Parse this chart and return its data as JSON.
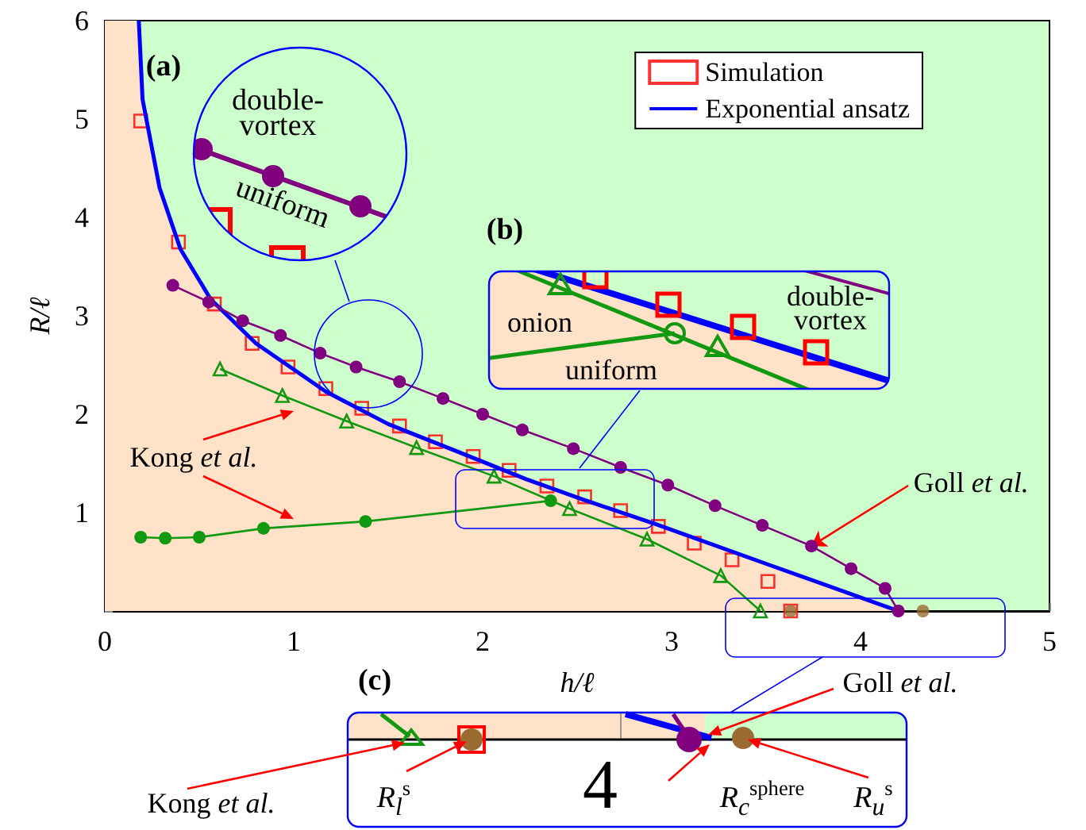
{
  "chart_data": {
    "type": "line",
    "xlabel": "h/ℓ",
    "ylabel": "R/ℓ",
    "xlim": [
      0,
      5
    ],
    "xticks": [
      0,
      1,
      2,
      3,
      4,
      5
    ],
    "ylim": [
      0,
      6
    ],
    "yticks": [
      {
        "value": 0,
        "label": null
      },
      1,
      2,
      3,
      4,
      5,
      6
    ],
    "legend": "top right",
    "grid": false,
    "series": [
      {
        "type": "area",
        "color": "#ffe2c8",
        "x": [
          0,
          0.18,
          0.2,
          0.29,
          0.4,
          0.56,
          0.8,
          1.17,
          1.5,
          1.88,
          2.23,
          2.52,
          2.92,
          3.5,
          4.2
        ],
        "values": [
          6.0,
          6.0,
          5.2,
          4.3,
          3.68,
          3.17,
          2.72,
          2.23,
          1.9,
          1.61,
          1.34,
          1.14,
          0.88,
          0.48,
          0.0
        ]
      },
      {
        "name": "Simulation",
        "type": "scatter",
        "marker": "square",
        "color": "#ff0000",
        "x": [
          0.19,
          0.39,
          0.58,
          0.78,
          0.97,
          1.17,
          1.36,
          1.56,
          1.75,
          1.95,
          2.14,
          2.34,
          2.54,
          2.73,
          2.93,
          3.12,
          3.32,
          3.51,
          3.63
        ],
        "values": [
          4.98,
          3.75,
          3.12,
          2.72,
          2.48,
          2.26,
          2.06,
          1.88,
          1.72,
          1.57,
          1.43,
          1.27,
          1.16,
          1.02,
          0.86,
          0.69,
          0.52,
          0.3,
          0.0
        ]
      },
      {
        "name": "Exponential ansatz",
        "marker": "none",
        "color": "#0000ff",
        "x": [
          0.18,
          0.2,
          0.29,
          0.4,
          0.56,
          0.8,
          1.17,
          1.5,
          1.88,
          2.23,
          2.52,
          2.92,
          3.5,
          4.2
        ],
        "values": [
          6.0,
          5.2,
          4.3,
          3.68,
          3.17,
          2.72,
          2.23,
          1.9,
          1.61,
          1.34,
          1.14,
          0.88,
          0.48,
          0.0
        ]
      },
      {
        "marker": "circle",
        "color": "#800080",
        "x": [
          0.36,
          0.55,
          0.73,
          0.93,
          1.14,
          1.33,
          1.56,
          1.79,
          2.0,
          2.21,
          2.48,
          2.73,
          2.98,
          3.23,
          3.48,
          3.74,
          3.95,
          4.13,
          4.2
        ],
        "values": [
          3.31,
          3.14,
          2.95,
          2.8,
          2.62,
          2.48,
          2.33,
          2.16,
          2.0,
          1.84,
          1.65,
          1.46,
          1.28,
          1.07,
          0.87,
          0.66,
          0.43,
          0.23,
          0.0
        ]
      },
      {
        "marker": "triangle",
        "color": "#119911",
        "x": [
          0.61,
          0.94,
          1.28,
          1.65,
          2.06,
          2.46,
          2.87,
          3.26,
          3.47
        ],
        "values": [
          2.46,
          2.19,
          1.93,
          1.66,
          1.37,
          1.04,
          0.73,
          0.36,
          0.0
        ]
      },
      {
        "marker": "circle",
        "color": "#119911",
        "x": [
          0.19,
          0.32,
          0.5,
          0.84,
          1.38,
          2.36
        ],
        "values": [
          0.75,
          0.74,
          0.75,
          0.84,
          0.91,
          1.12
        ]
      },
      {
        "type": "scatter",
        "marker": "circle",
        "color": "#9a6a30",
        "x": [
          3.63,
          4.33
        ],
        "values": [
          0,
          0
        ]
      }
    ],
    "annotations": [
      "(a)",
      "double-vortex",
      "uniform",
      "(b)",
      "onion",
      "uniform",
      "double-vortex",
      "Kong et al.",
      {
        "text": "Goll et al.",
        "x": 3.74,
        "y": 0.66
      },
      "(c)",
      "Goll et al.",
      "Kong et al.",
      "R$_{l}$$^{s}$",
      "4",
      "R$_{c}$$^{sphere}$",
      "R$_{u}$$^{s}$"
    ]
  }
}
